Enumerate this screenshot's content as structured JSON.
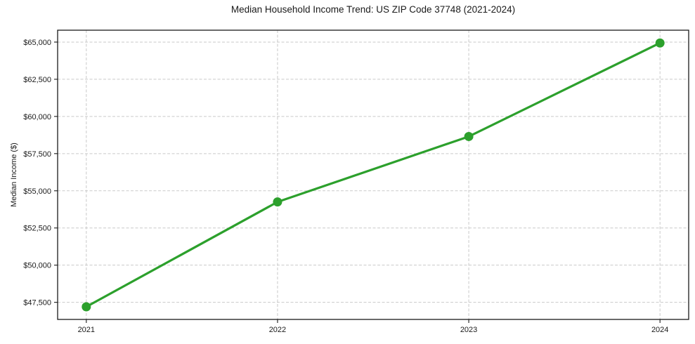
{
  "chart_data": {
    "type": "line",
    "title": "Median Household Income Trend: US ZIP Code 37748 (2021-2024)",
    "xlabel": "",
    "ylabel": "Median Income ($)",
    "x": [
      2021,
      2022,
      2023,
      2024
    ],
    "x_tick_labels": [
      "2021",
      "2022",
      "2023",
      "2024"
    ],
    "series": [
      {
        "name": "Median Household Income",
        "values": [
          47200,
          54250,
          58650,
          64940
        ]
      }
    ],
    "y_ticks": [
      47500,
      50000,
      52500,
      55000,
      57500,
      60000,
      62500,
      65000
    ],
    "y_tick_labels": [
      "$47,500",
      "$50,000",
      "$52,500",
      "$55,000",
      "$57,500",
      "$60,000",
      "$62,500",
      "$65,000"
    ],
    "ylim": [
      46350,
      65800
    ],
    "xlim": [
      2020.85,
      2024.15
    ],
    "grid": true,
    "legend": false,
    "line_color": "#2ca02c",
    "marker_color": "#2ca02c",
    "grid_color": "#c9c9c9",
    "axis_color": "#1a1a1a",
    "text_color": "#1a1a1a",
    "background": "#ffffff"
  }
}
